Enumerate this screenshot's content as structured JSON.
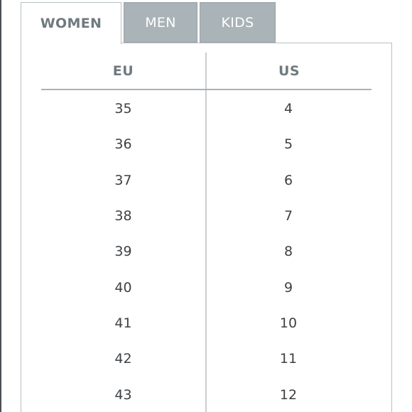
{
  "tabs": [
    {
      "label": "WOMEN",
      "active": true
    },
    {
      "label": "MEN",
      "active": false
    },
    {
      "label": "KIDS",
      "active": false
    }
  ],
  "table": {
    "headers": {
      "eu": "EU",
      "us": "US"
    },
    "rows": [
      {
        "eu": "35",
        "us": "4"
      },
      {
        "eu": "36",
        "us": "5"
      },
      {
        "eu": "37",
        "us": "6"
      },
      {
        "eu": "38",
        "us": "7"
      },
      {
        "eu": "39",
        "us": "8"
      },
      {
        "eu": "40",
        "us": "9"
      },
      {
        "eu": "41",
        "us": "10"
      },
      {
        "eu": "42",
        "us": "11"
      },
      {
        "eu": "43",
        "us": "12"
      }
    ]
  },
  "colors": {
    "tab_active_text": "#6f7a80",
    "tab_inactive_bg": "#a9b3b8",
    "tab_inactive_text": "#ffffff",
    "header_text": "#6f7a80",
    "cell_text": "#3d4144",
    "border": "#b9bfc3"
  }
}
